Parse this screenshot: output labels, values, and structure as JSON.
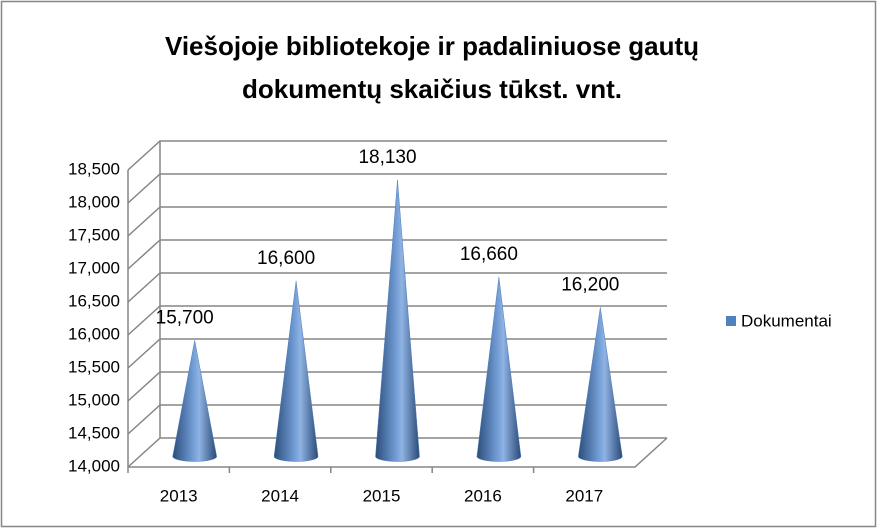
{
  "chart_data": {
    "type": "cone",
    "title": "Viešojoje bibliotekoje ir padaliniuose gautų dokumentų skaičius tūkst. vnt.",
    "categories": [
      "2013",
      "2014",
      "2015",
      "2016",
      "2017"
    ],
    "series": [
      {
        "name": "Dokumentai",
        "color": "#4f81bd",
        "values": [
          15700,
          16600,
          18130,
          16660,
          16200
        ],
        "value_labels": [
          "15,700",
          "16,600",
          "18,130",
          "16,660",
          "16,200"
        ]
      }
    ],
    "ylim": [
      14000,
      18500
    ],
    "yticks": [
      {
        "value": 14000,
        "label": "14,000"
      },
      {
        "value": 14500,
        "label": "14,500"
      },
      {
        "value": 15000,
        "label": "15,000"
      },
      {
        "value": 15500,
        "label": "15,500"
      },
      {
        "value": 16000,
        "label": "16,000"
      },
      {
        "value": 16500,
        "label": "16,500"
      },
      {
        "value": 17000,
        "label": "17,000"
      },
      {
        "value": 17500,
        "label": "17,500"
      },
      {
        "value": 18000,
        "label": "18,000"
      },
      {
        "value": 18500,
        "label": "18,500"
      }
    ],
    "grid": true,
    "legend": "right"
  }
}
